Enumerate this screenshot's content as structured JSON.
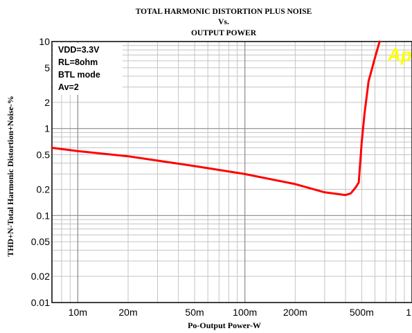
{
  "chart_data": {
    "type": "line",
    "title": "TOTAL HARMONIC DISTORTION PLUS NOISE",
    "subtitle_lines": [
      "Vs.",
      "OUTPUT POWER"
    ],
    "xlabel": "Po-Output Power-W",
    "ylabel": "THD+N-Total Harmonic Distortion+Noise-%",
    "x_scale": "log",
    "y_scale": "log",
    "xlim": [
      0.007,
      1.0
    ],
    "ylim": [
      0.01,
      10
    ],
    "grid": true,
    "x_ticks": [
      {
        "value": 0.01,
        "label": "10m"
      },
      {
        "value": 0.02,
        "label": "20m"
      },
      {
        "value": 0.05,
        "label": "50m"
      },
      {
        "value": 0.1,
        "label": "100m"
      },
      {
        "value": 0.2,
        "label": "200m"
      },
      {
        "value": 0.5,
        "label": "500m"
      },
      {
        "value": 1.0,
        "label": "1"
      }
    ],
    "y_ticks": [
      {
        "value": 10,
        "label": "10"
      },
      {
        "value": 5,
        "label": "5"
      },
      {
        "value": 2,
        "label": "2"
      },
      {
        "value": 1,
        "label": "1"
      },
      {
        "value": 0.5,
        "label": "0.5"
      },
      {
        "value": 0.2,
        "label": "0.2"
      },
      {
        "value": 0.1,
        "label": "0.1"
      },
      {
        "value": 0.05,
        "label": "0.05"
      },
      {
        "value": 0.02,
        "label": "0.02"
      },
      {
        "value": 0.01,
        "label": "0.01"
      }
    ],
    "annotations": [
      "VDD=3.3V",
      "RL=8ohm",
      "BTL mode",
      "Av=2"
    ],
    "logo": "Ap",
    "series": [
      {
        "color": "#ff0000",
        "x": [
          0.007,
          0.01,
          0.02,
          0.05,
          0.1,
          0.2,
          0.3,
          0.4,
          0.43,
          0.46,
          0.48,
          0.5,
          0.52,
          0.55,
          0.6,
          0.64
        ],
        "y": [
          0.6,
          0.55,
          0.48,
          0.37,
          0.3,
          0.23,
          0.185,
          0.172,
          0.18,
          0.21,
          0.24,
          0.7,
          1.5,
          3.5,
          6.5,
          10
        ]
      }
    ]
  }
}
